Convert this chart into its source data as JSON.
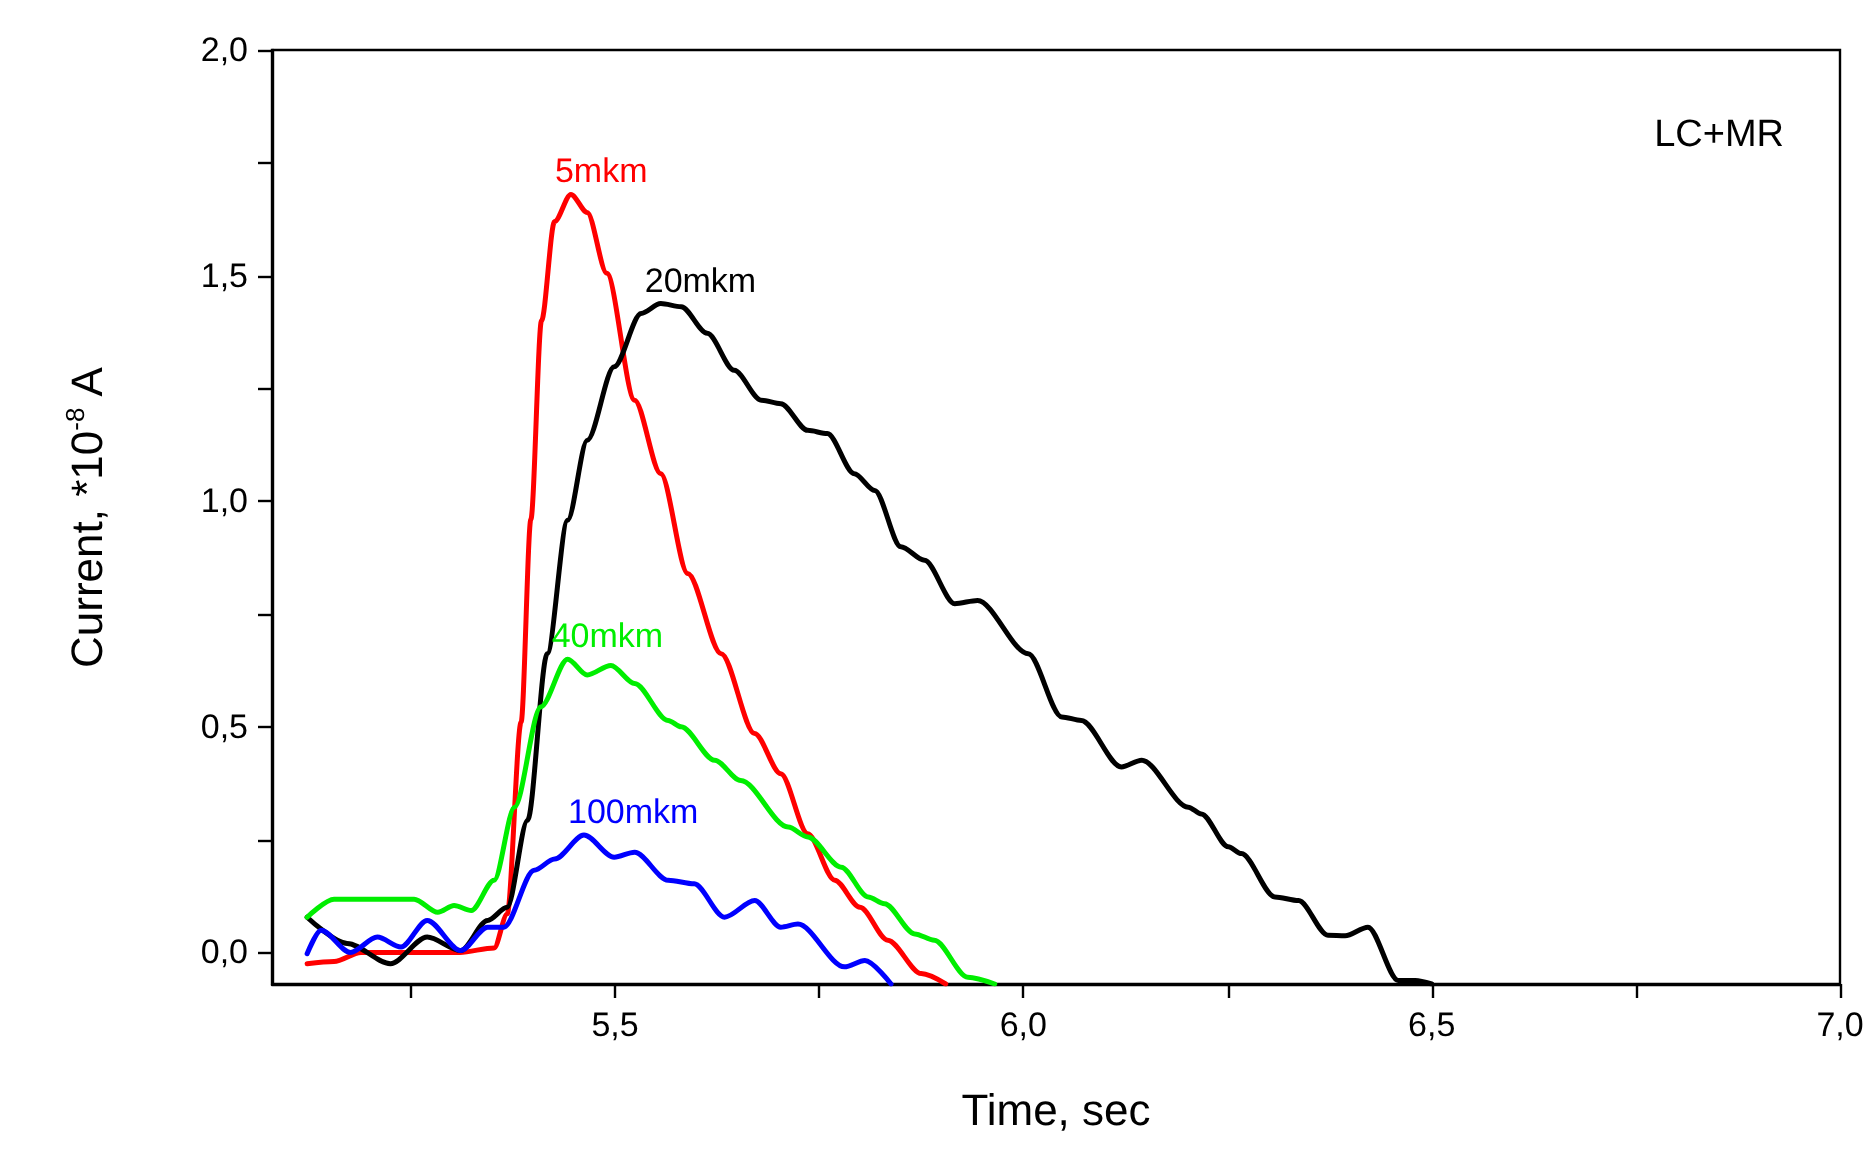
{
  "chart_data": {
    "type": "line",
    "xlabel": "Time, sec",
    "ylabel": "Current, *10$^{-8}$ A",
    "xlim": [
      5.08,
      7.0
    ],
    "ylim": [
      -0.07,
      2.0
    ],
    "xticks": [
      {
        "value": 5.25,
        "label": null
      },
      {
        "value": 5.5,
        "label": "5,5"
      },
      {
        "value": 5.75,
        "label": null
      },
      {
        "value": 6.0,
        "label": "6,0"
      },
      {
        "value": 6.25,
        "label": null
      },
      {
        "value": 6.5,
        "label": "6,5"
      },
      {
        "value": 6.75,
        "label": null
      },
      {
        "value": 7.0,
        "label": "7,0"
      }
    ],
    "yticks": [
      {
        "value": 0,
        "label": "0,0"
      },
      {
        "value": 0.25,
        "label": null
      },
      {
        "value": 0.5,
        "label": "0,5"
      },
      {
        "value": 0.75,
        "label": null
      },
      {
        "value": 1.0,
        "label": "1,0"
      },
      {
        "value": 1.25,
        "label": null
      },
      {
        "value": 1.5,
        "label": "1,5"
      },
      {
        "value": 1.75,
        "label": null
      },
      {
        "value": 2.0,
        "label": "2,0"
      }
    ],
    "grid": false,
    "legend": false,
    "marker": "none",
    "line_style": "solid",
    "series": [
      {
        "name": "5mkm",
        "color": "#ff0000",
        "x": [
          5.123,
          5.156,
          5.189,
          5.27,
          5.31,
          5.352,
          5.368,
          5.385,
          5.397,
          5.41,
          5.426,
          5.446,
          5.466,
          5.49,
          5.524,
          5.556,
          5.589,
          5.63,
          5.671,
          5.703,
          5.736,
          5.769,
          5.8,
          5.834,
          5.875,
          5.905
        ],
        "values": [
          -0.025,
          -0.02,
          0,
          0,
          0,
          0.01,
          0.085,
          0.51,
          0.96,
          1.4,
          1.62,
          1.68,
          1.64,
          1.505,
          1.224,
          1.061,
          0.84,
          0.662,
          0.485,
          0.396,
          0.263,
          0.16,
          0.1,
          0.027,
          -0.047,
          -0.07
        ]
      },
      {
        "name": "20mkm",
        "color": "#000000",
        "x": [
          5.123,
          5.172,
          5.225,
          5.27,
          5.311,
          5.344,
          5.368,
          5.393,
          5.417,
          5.442,
          5.466,
          5.499,
          5.532,
          5.556,
          5.581,
          5.613,
          5.646,
          5.679,
          5.703,
          5.736,
          5.76,
          5.793,
          5.818,
          5.85,
          5.879,
          5.916,
          5.944,
          6.006,
          6.047,
          6.071,
          6.12,
          6.145,
          6.202,
          6.218,
          6.251,
          6.267,
          6.308,
          6.337,
          6.373,
          6.394,
          6.422,
          6.459,
          6.48,
          6.5
        ],
        "values": [
          0.078,
          0.02,
          -0.025,
          0.034,
          0.004,
          0.071,
          0.1,
          0.293,
          0.662,
          0.958,
          1.135,
          1.298,
          1.416,
          1.438,
          1.431,
          1.372,
          1.29,
          1.224,
          1.216,
          1.157,
          1.15,
          1.061,
          1.024,
          0.899,
          0.869,
          0.773,
          0.78,
          0.662,
          0.522,
          0.514,
          0.411,
          0.426,
          0.322,
          0.307,
          0.234,
          0.219,
          0.123,
          0.115,
          0.038,
          0.037,
          0.056,
          -0.062,
          -0.062,
          -0.07
        ]
      },
      {
        "name": "40mkm",
        "color": "#00ee00",
        "x": [
          5.123,
          5.156,
          5.254,
          5.283,
          5.303,
          5.324,
          5.352,
          5.377,
          5.409,
          5.442,
          5.466,
          5.495,
          5.524,
          5.565,
          5.581,
          5.622,
          5.654,
          5.712,
          5.736,
          5.777,
          5.81,
          5.83,
          5.867,
          5.891,
          5.932,
          5.965
        ],
        "values": [
          0.078,
          0.118,
          0.118,
          0.089,
          0.104,
          0.093,
          0.16,
          0.322,
          0.544,
          0.65,
          0.615,
          0.636,
          0.596,
          0.514,
          0.5,
          0.426,
          0.381,
          0.278,
          0.256,
          0.189,
          0.123,
          0.108,
          0.041,
          0.027,
          -0.055,
          -0.07
        ]
      },
      {
        "name": "100mkm",
        "color": "#0000ff",
        "x": [
          5.123,
          5.14,
          5.176,
          5.209,
          5.238,
          5.27,
          5.311,
          5.344,
          5.364,
          5.401,
          5.426,
          5.462,
          5.499,
          5.524,
          5.565,
          5.597,
          5.634,
          5.671,
          5.703,
          5.724,
          5.781,
          5.806,
          5.838
        ],
        "values": [
          -0.003,
          0.049,
          0,
          0.034,
          0.012,
          0.071,
          0.004,
          0.056,
          0.056,
          0.182,
          0.207,
          0.26,
          0.211,
          0.222,
          0.16,
          0.152,
          0.078,
          0.115,
          0.056,
          0.063,
          -0.032,
          -0.018,
          -0.07
        ]
      }
    ],
    "annotations": [
      "LC+MR"
    ]
  }
}
